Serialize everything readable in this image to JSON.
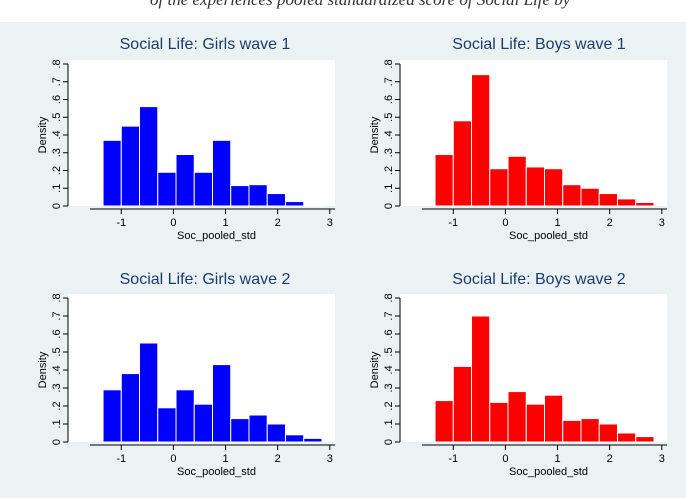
{
  "header_fragment": "of the experiences pooled standardized score of Social Life by",
  "chart_data": [
    {
      "type": "bar",
      "title": "Social Life: Girls wave 1",
      "xlabel": "Soc_pooled_std",
      "ylabel": "Density",
      "color": "#0000ff",
      "bin_edges": [
        -1.35,
        -1.0,
        -0.65,
        -0.3,
        0.05,
        0.4,
        0.75,
        1.1,
        1.45,
        1.8,
        2.15,
        2.5,
        2.85
      ],
      "values": [
        0.37,
        0.45,
        0.56,
        0.19,
        0.29,
        0.19,
        0.37,
        0.115,
        0.12,
        0.07,
        0.025,
        0.004
      ],
      "xlim": [
        -1.6,
        3.1
      ],
      "ylim": [
        0,
        0.8
      ],
      "xticks": [
        -1,
        0,
        1,
        2,
        3
      ],
      "yticks": [
        0,
        0.1,
        0.2,
        0.3,
        0.4,
        0.5,
        0.6,
        0.7,
        0.8
      ],
      "ytick_labels": [
        "0",
        ".1",
        ".2",
        ".3",
        ".4",
        ".5",
        ".6",
        ".7",
        ".8"
      ]
    },
    {
      "type": "bar",
      "title": "Social Life: Boys wave 1",
      "xlabel": "Soc_pooled_std",
      "ylabel": "Density",
      "color": "#ff0000",
      "bin_edges": [
        -1.35,
        -1.0,
        -0.65,
        -0.3,
        0.05,
        0.4,
        0.75,
        1.1,
        1.45,
        1.8,
        2.15,
        2.5,
        2.85
      ],
      "values": [
        0.29,
        0.48,
        0.74,
        0.21,
        0.28,
        0.22,
        0.21,
        0.12,
        0.1,
        0.07,
        0.04,
        0.02
      ],
      "xlim": [
        -1.6,
        3.1
      ],
      "ylim": [
        0,
        0.8
      ],
      "xticks": [
        -1,
        0,
        1,
        2,
        3
      ],
      "yticks": [
        0,
        0.1,
        0.2,
        0.3,
        0.4,
        0.5,
        0.6,
        0.7,
        0.8
      ],
      "ytick_labels": [
        "0",
        ".1",
        ".2",
        ".3",
        ".4",
        ".5",
        ".6",
        ".7",
        ".8"
      ]
    },
    {
      "type": "bar",
      "title": "Social Life: Girls wave 2",
      "xlabel": "Soc_pooled_std",
      "ylabel": "Density",
      "color": "#0000ff",
      "bin_edges": [
        -1.35,
        -1.0,
        -0.65,
        -0.3,
        0.05,
        0.4,
        0.75,
        1.1,
        1.45,
        1.8,
        2.15,
        2.5,
        2.85
      ],
      "values": [
        0.29,
        0.38,
        0.55,
        0.19,
        0.29,
        0.21,
        0.43,
        0.13,
        0.15,
        0.1,
        0.04,
        0.02
      ],
      "xlim": [
        -1.6,
        3.1
      ],
      "ylim": [
        0,
        0.8
      ],
      "xticks": [
        -1,
        0,
        1,
        2,
        3
      ],
      "yticks": [
        0,
        0.1,
        0.2,
        0.3,
        0.4,
        0.5,
        0.6,
        0.7,
        0.8
      ],
      "ytick_labels": [
        "0",
        ".1",
        ".2",
        ".3",
        ".4",
        ".5",
        ".6",
        ".7",
        ".8"
      ]
    },
    {
      "type": "bar",
      "title": "Social Life: Boys wave 2",
      "xlabel": "Soc_pooled_std",
      "ylabel": "Density",
      "color": "#ff0000",
      "bin_edges": [
        -1.35,
        -1.0,
        -0.65,
        -0.3,
        0.05,
        0.4,
        0.75,
        1.1,
        1.45,
        1.8,
        2.15,
        2.5,
        2.85
      ],
      "values": [
        0.23,
        0.42,
        0.7,
        0.22,
        0.28,
        0.21,
        0.26,
        0.12,
        0.13,
        0.1,
        0.05,
        0.03
      ],
      "xlim": [
        -1.6,
        3.1
      ],
      "ylim": [
        0,
        0.8
      ],
      "xticks": [
        -1,
        0,
        1,
        2,
        3
      ],
      "yticks": [
        0,
        0.1,
        0.2,
        0.3,
        0.4,
        0.5,
        0.6,
        0.7,
        0.8
      ],
      "ytick_labels": [
        "0",
        ".1",
        ".2",
        ".3",
        ".4",
        ".5",
        ".6",
        ".7",
        ".8"
      ]
    }
  ]
}
